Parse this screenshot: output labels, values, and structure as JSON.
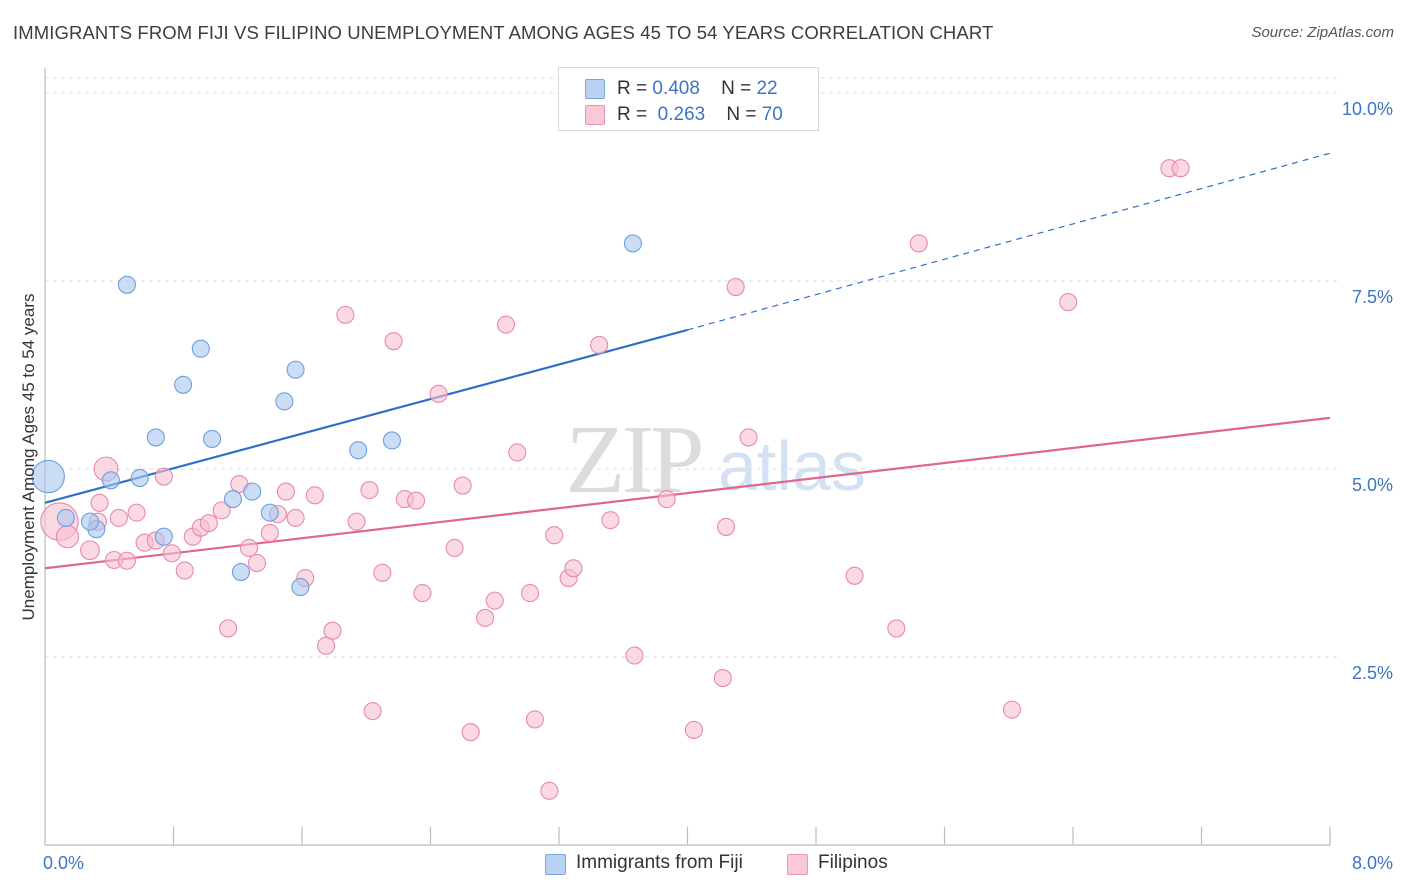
{
  "header": {
    "title": "IMMIGRANTS FROM FIJI VS FILIPINO UNEMPLOYMENT AMONG AGES 45 TO 54 YEARS CORRELATION CHART",
    "source": "Source: ZipAtlas.com"
  },
  "watermark": {
    "zip": "ZIP",
    "atlas": "atlas"
  },
  "legend": {
    "r_label": "R =",
    "n_label": "N =",
    "series": [
      {
        "r": "0.408",
        "n": "22"
      },
      {
        "r": "0.263",
        "n": "70"
      }
    ]
  },
  "colors": {
    "fiji_fill": "#a9c7ef",
    "fiji_stroke": "#6f9fdb",
    "fiji_line": "#2f6fca",
    "filipino_fill": "#f7bfd1",
    "filipino_stroke": "#e78aa9",
    "filipino_line": "#e0668f",
    "axis_tick_color": "#3c74c6",
    "grid": "#dcdcdc"
  },
  "chart_data": {
    "type": "scatter",
    "title": "IMMIGRANTS FROM FIJI VS FILIPINO UNEMPLOYMENT AMONG AGES 45 TO 54 YEARS CORRELATION CHART",
    "xlabel": "",
    "ylabel": "Unemployment Among Ages 45 to 54 years",
    "xlim": [
      0,
      8
    ],
    "ylim": [
      0,
      10.2
    ],
    "x_tick_labels": [
      "0.0%",
      "8.0%"
    ],
    "y_ticks": [
      {
        "value": 2.5,
        "label": "2.5%"
      },
      {
        "value": 5.0,
        "label": "5.0%"
      },
      {
        "value": 7.5,
        "label": "7.5%"
      },
      {
        "value": 10.0,
        "label": "10.0%"
      }
    ],
    "x_minor_ticks": [
      0.8,
      1.6,
      2.4,
      3.2,
      4.0,
      4.8,
      5.6,
      6.4,
      7.2,
      8.0
    ],
    "series": [
      {
        "name": "Immigrants from Fiji",
        "points": [
          [
            0.02,
            4.9,
            1.9
          ],
          [
            0.13,
            4.35,
            1
          ],
          [
            0.32,
            4.2,
            1
          ],
          [
            0.41,
            4.85,
            1
          ],
          [
            0.51,
            7.45,
            1
          ],
          [
            0.59,
            4.88,
            1
          ],
          [
            0.69,
            5.42,
            1
          ],
          [
            0.74,
            4.1,
            1
          ],
          [
            0.86,
            6.12,
            1
          ],
          [
            0.97,
            6.6,
            1
          ],
          [
            1.04,
            5.4,
            1
          ],
          [
            1.17,
            4.6,
            1
          ],
          [
            1.22,
            3.63,
            1
          ],
          [
            1.29,
            4.7,
            1
          ],
          [
            1.4,
            4.42,
            1
          ],
          [
            1.49,
            5.9,
            1
          ],
          [
            1.56,
            6.32,
            1
          ],
          [
            1.59,
            3.43,
            1
          ],
          [
            1.95,
            5.25,
            1
          ],
          [
            2.16,
            5.38,
            1
          ],
          [
            3.66,
            8.0,
            1
          ],
          [
            0.28,
            4.3,
            1
          ]
        ],
        "trend": {
          "x0": 0.0,
          "y0": 4.55,
          "x1": 4.0,
          "y1": 6.85,
          "dash_x1": 8.0,
          "dash_y1": 9.2
        }
      },
      {
        "name": "Filipinos",
        "points": [
          [
            0.09,
            4.3,
            2.2
          ],
          [
            0.14,
            4.1,
            1.3
          ],
          [
            0.28,
            3.92,
            1.1
          ],
          [
            0.33,
            4.3,
            1
          ],
          [
            0.34,
            4.55,
            1
          ],
          [
            0.38,
            5.0,
            1.4
          ],
          [
            0.43,
            3.79,
            1
          ],
          [
            0.46,
            4.35,
            1
          ],
          [
            0.51,
            3.78,
            1
          ],
          [
            0.57,
            4.42,
            1
          ],
          [
            0.62,
            4.02,
            1
          ],
          [
            0.69,
            4.05,
            1
          ],
          [
            0.74,
            4.9,
            1
          ],
          [
            0.79,
            3.88,
            1
          ],
          [
            0.87,
            3.65,
            1
          ],
          [
            0.92,
            4.1,
            1
          ],
          [
            0.97,
            4.22,
            1
          ],
          [
            1.02,
            4.28,
            1
          ],
          [
            1.1,
            4.45,
            1
          ],
          [
            1.14,
            2.88,
            1
          ],
          [
            1.21,
            4.8,
            1
          ],
          [
            1.27,
            3.95,
            1
          ],
          [
            1.32,
            3.75,
            1
          ],
          [
            1.4,
            4.15,
            1
          ],
          [
            1.45,
            4.4,
            1
          ],
          [
            1.5,
            4.7,
            1
          ],
          [
            1.56,
            4.35,
            1
          ],
          [
            1.62,
            3.55,
            1
          ],
          [
            1.68,
            4.65,
            1
          ],
          [
            1.75,
            2.65,
            1
          ],
          [
            1.79,
            2.85,
            1
          ],
          [
            1.87,
            7.05,
            1
          ],
          [
            1.94,
            4.3,
            1
          ],
          [
            2.02,
            4.72,
            1
          ],
          [
            2.04,
            1.78,
            1
          ],
          [
            2.1,
            3.62,
            1
          ],
          [
            2.17,
            6.7,
            1
          ],
          [
            2.24,
            4.6,
            1
          ],
          [
            2.31,
            4.58,
            1
          ],
          [
            2.35,
            3.35,
            1
          ],
          [
            2.45,
            6.0,
            1
          ],
          [
            2.55,
            3.95,
            1
          ],
          [
            2.6,
            4.78,
            1
          ],
          [
            2.65,
            1.5,
            1
          ],
          [
            2.74,
            3.02,
            1
          ],
          [
            2.8,
            3.25,
            1
          ],
          [
            2.87,
            6.92,
            1
          ],
          [
            2.94,
            5.22,
            1
          ],
          [
            3.02,
            3.35,
            1
          ],
          [
            3.05,
            1.67,
            1
          ],
          [
            3.14,
            0.72,
            1
          ],
          [
            3.17,
            4.12,
            1
          ],
          [
            3.26,
            3.55,
            1
          ],
          [
            3.29,
            3.68,
            1
          ],
          [
            3.45,
            6.65,
            1
          ],
          [
            3.52,
            4.32,
            1
          ],
          [
            3.67,
            2.52,
            1
          ],
          [
            3.87,
            4.6,
            1
          ],
          [
            4.04,
            1.53,
            1
          ],
          [
            4.22,
            2.22,
            1
          ],
          [
            4.24,
            4.23,
            1
          ],
          [
            4.3,
            7.42,
            1
          ],
          [
            4.38,
            5.42,
            1
          ],
          [
            5.04,
            3.58,
            1
          ],
          [
            5.3,
            2.88,
            1
          ],
          [
            5.44,
            8.0,
            1
          ],
          [
            6.02,
            1.8,
            1
          ],
          [
            6.37,
            7.22,
            1
          ],
          [
            7.0,
            9.0,
            1
          ],
          [
            7.07,
            9.0,
            1
          ]
        ],
        "trend": {
          "x0": 0.0,
          "y0": 3.68,
          "x1": 8.0,
          "y1": 5.68
        }
      }
    ],
    "legend": [
      "Immigrants from Fiji",
      "Filipinos"
    ]
  }
}
